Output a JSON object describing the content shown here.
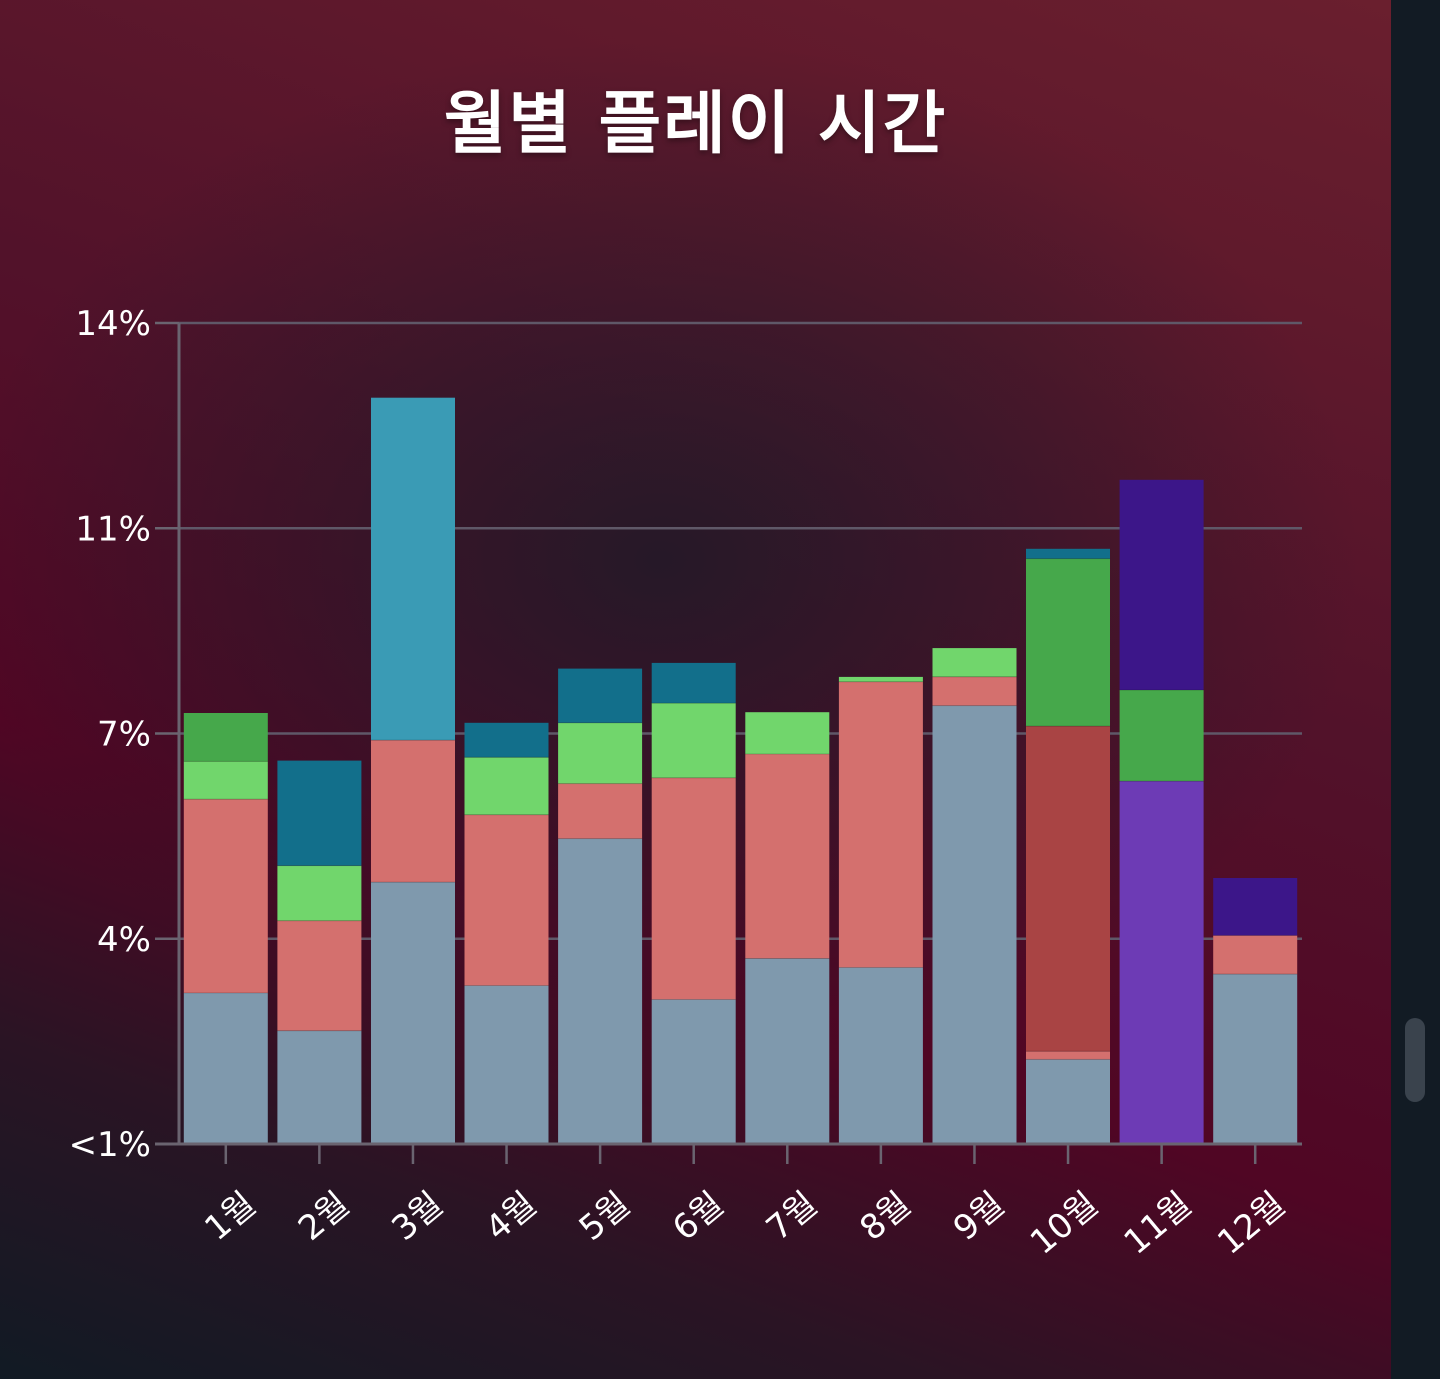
{
  "title": "월별 플레이 시간",
  "chart_data": {
    "type": "bar",
    "stacked": true,
    "title": "월별 플레이 시간",
    "xlabel": "",
    "ylabel": "",
    "categories": [
      "1월",
      "2월",
      "3월",
      "4월",
      "5월",
      "6월",
      "7월",
      "8월",
      "9월",
      "10월",
      "11월",
      "12월"
    ],
    "y_tick_labels": [
      "<1%",
      "4%",
      "7%",
      "11%",
      "14%"
    ],
    "ylim": [
      0,
      100
    ],
    "grid": true,
    "legend": "none",
    "note": "each bar is a stack of segments; values are segment sizes on the chart's own scale (0 = <1% baseline, 100 = 14% gridline)",
    "bars": [
      {
        "category": "1월",
        "segments": [
          {
            "value": 18.4,
            "color": "#7f99ad"
          },
          {
            "value": 23.6,
            "color": "#d4706e"
          },
          {
            "value": 4.6,
            "color": "#71d66c"
          },
          {
            "value": 5.9,
            "color": "#46a84b"
          }
        ]
      },
      {
        "category": "2월",
        "segments": [
          {
            "value": 13.8,
            "color": "#7f99ad"
          },
          {
            "value": 13.4,
            "color": "#d4706e"
          },
          {
            "value": 6.7,
            "color": "#71d66c"
          },
          {
            "value": 12.8,
            "color": "#126f8b"
          }
        ]
      },
      {
        "category": "3월",
        "segments": [
          {
            "value": 31.9,
            "color": "#7f99ad"
          },
          {
            "value": 17.3,
            "color": "#d4706e"
          },
          {
            "value": 41.7,
            "color": "#3a9bb5"
          }
        ]
      },
      {
        "category": "4월",
        "segments": [
          {
            "value": 19.3,
            "color": "#7f99ad"
          },
          {
            "value": 20.8,
            "color": "#d4706e"
          },
          {
            "value": 7.0,
            "color": "#71d66c"
          },
          {
            "value": 4.2,
            "color": "#126f8b"
          }
        ]
      },
      {
        "category": "5월",
        "segments": [
          {
            "value": 37.2,
            "color": "#7f99ad"
          },
          {
            "value": 6.7,
            "color": "#d4706e"
          },
          {
            "value": 7.4,
            "color": "#71d66c"
          },
          {
            "value": 6.6,
            "color": "#126f8b"
          }
        ]
      },
      {
        "category": "6월",
        "segments": [
          {
            "value": 17.6,
            "color": "#7f99ad"
          },
          {
            "value": 27.0,
            "color": "#d4706e"
          },
          {
            "value": 9.1,
            "color": "#71d66c"
          },
          {
            "value": 4.9,
            "color": "#126f8b"
          }
        ]
      },
      {
        "category": "7월",
        "segments": [
          {
            "value": 22.6,
            "color": "#7f99ad"
          },
          {
            "value": 24.9,
            "color": "#d4706e"
          },
          {
            "value": 5.1,
            "color": "#71d66c"
          }
        ]
      },
      {
        "category": "8월",
        "segments": [
          {
            "value": 21.5,
            "color": "#7f99ad"
          },
          {
            "value": 34.8,
            "color": "#d4706e"
          },
          {
            "value": 0.6,
            "color": "#71d66c"
          }
        ]
      },
      {
        "category": "9월",
        "segments": [
          {
            "value": 53.4,
            "color": "#7f99ad"
          },
          {
            "value": 3.5,
            "color": "#d4706e"
          },
          {
            "value": 3.5,
            "color": "#71d66c"
          }
        ]
      },
      {
        "category": "10월",
        "segments": [
          {
            "value": 10.3,
            "color": "#7f99ad"
          },
          {
            "value": 1.0,
            "color": "#d4706e"
          },
          {
            "value": 39.6,
            "color": "#a94444"
          },
          {
            "value": 20.4,
            "color": "#46a84b"
          },
          {
            "value": 1.2,
            "color": "#126f8b"
          }
        ]
      },
      {
        "category": "11월",
        "segments": [
          {
            "value": 44.2,
            "color": "#6d3bb5"
          },
          {
            "value": 11.1,
            "color": "#46a84b"
          },
          {
            "value": 25.6,
            "color": "#3c1689"
          }
        ]
      },
      {
        "category": "12월",
        "segments": [
          {
            "value": 20.7,
            "color": "#7f99ad"
          },
          {
            "value": 4.7,
            "color": "#d4706e"
          },
          {
            "value": 7.0,
            "color": "#3c1689"
          }
        ]
      }
    ]
  }
}
